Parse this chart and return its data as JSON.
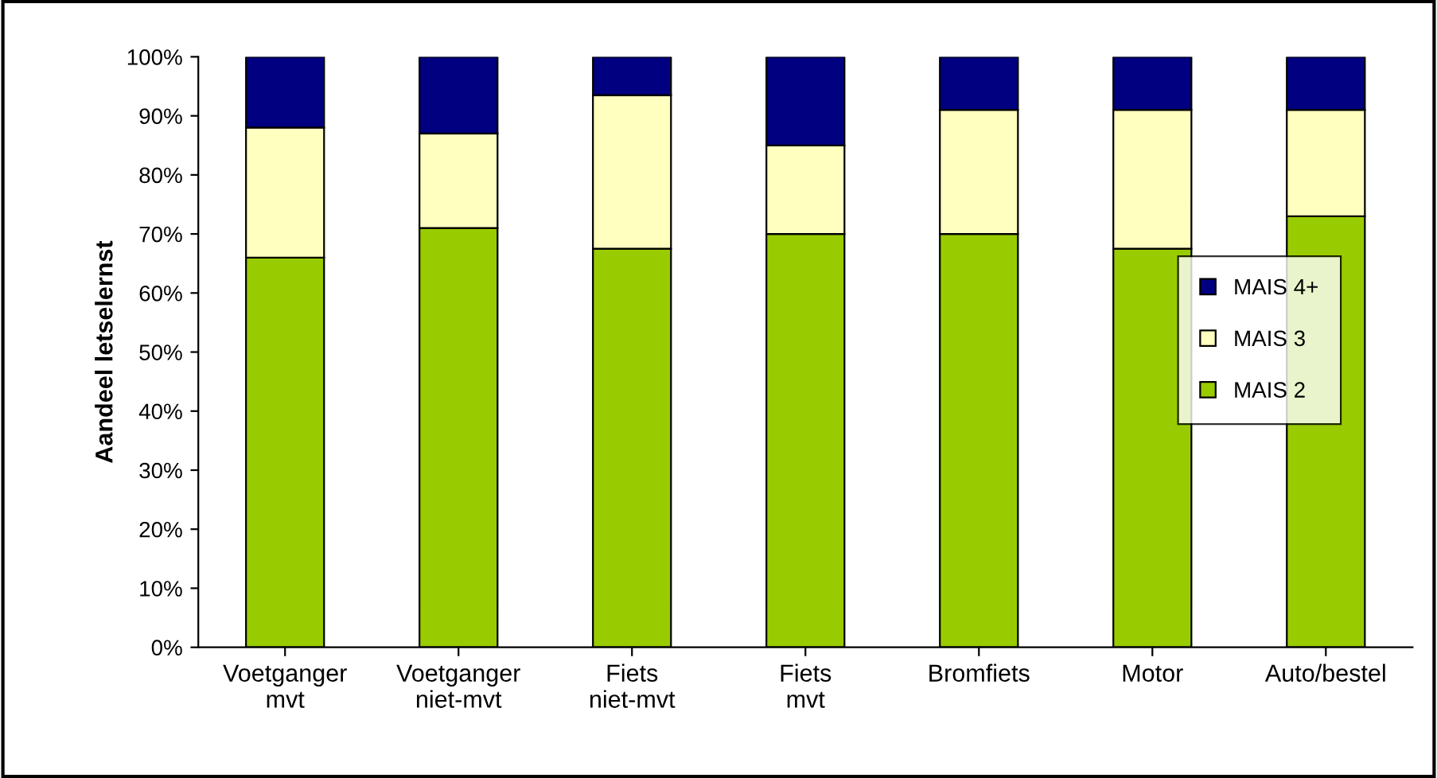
{
  "chart_data": {
    "type": "bar",
    "stacked": true,
    "ylabel": "Aandeel letselernst",
    "categories": [
      "Voetganger\nmvt",
      "Voetganger\nniet-mvt",
      "Fiets\nniet-mvt",
      "Fiets\nmvt",
      "Bromfiets",
      "Motor",
      "Auto/bestel"
    ],
    "series": [
      {
        "name": "MAIS 2",
        "color": "#99cc00",
        "values": [
          66,
          71,
          67.5,
          70,
          70,
          67.5,
          73
        ]
      },
      {
        "name": "MAIS 3",
        "color": "#ffffc0",
        "values": [
          22,
          16,
          26,
          15,
          21,
          23.5,
          18
        ]
      },
      {
        "name": "MAIS 4+",
        "color": "#000080",
        "values": [
          12,
          13,
          6.5,
          15,
          9,
          9,
          9
        ]
      }
    ],
    "ylim": [
      0,
      100
    ],
    "yticks": [
      {
        "value": 0,
        "label": "0%"
      },
      {
        "value": 10,
        "label": "10%"
      },
      {
        "value": 20,
        "label": "20%"
      },
      {
        "value": 30,
        "label": "30%"
      },
      {
        "value": 40,
        "label": "40%"
      },
      {
        "value": 50,
        "label": "50%"
      },
      {
        "value": 60,
        "label": "60%"
      },
      {
        "value": 70,
        "label": "70%"
      },
      {
        "value": 80,
        "label": "80%"
      },
      {
        "value": 90,
        "label": "90%"
      },
      {
        "value": 100,
        "label": "100%"
      }
    ],
    "grid": false,
    "legend": "center right"
  }
}
